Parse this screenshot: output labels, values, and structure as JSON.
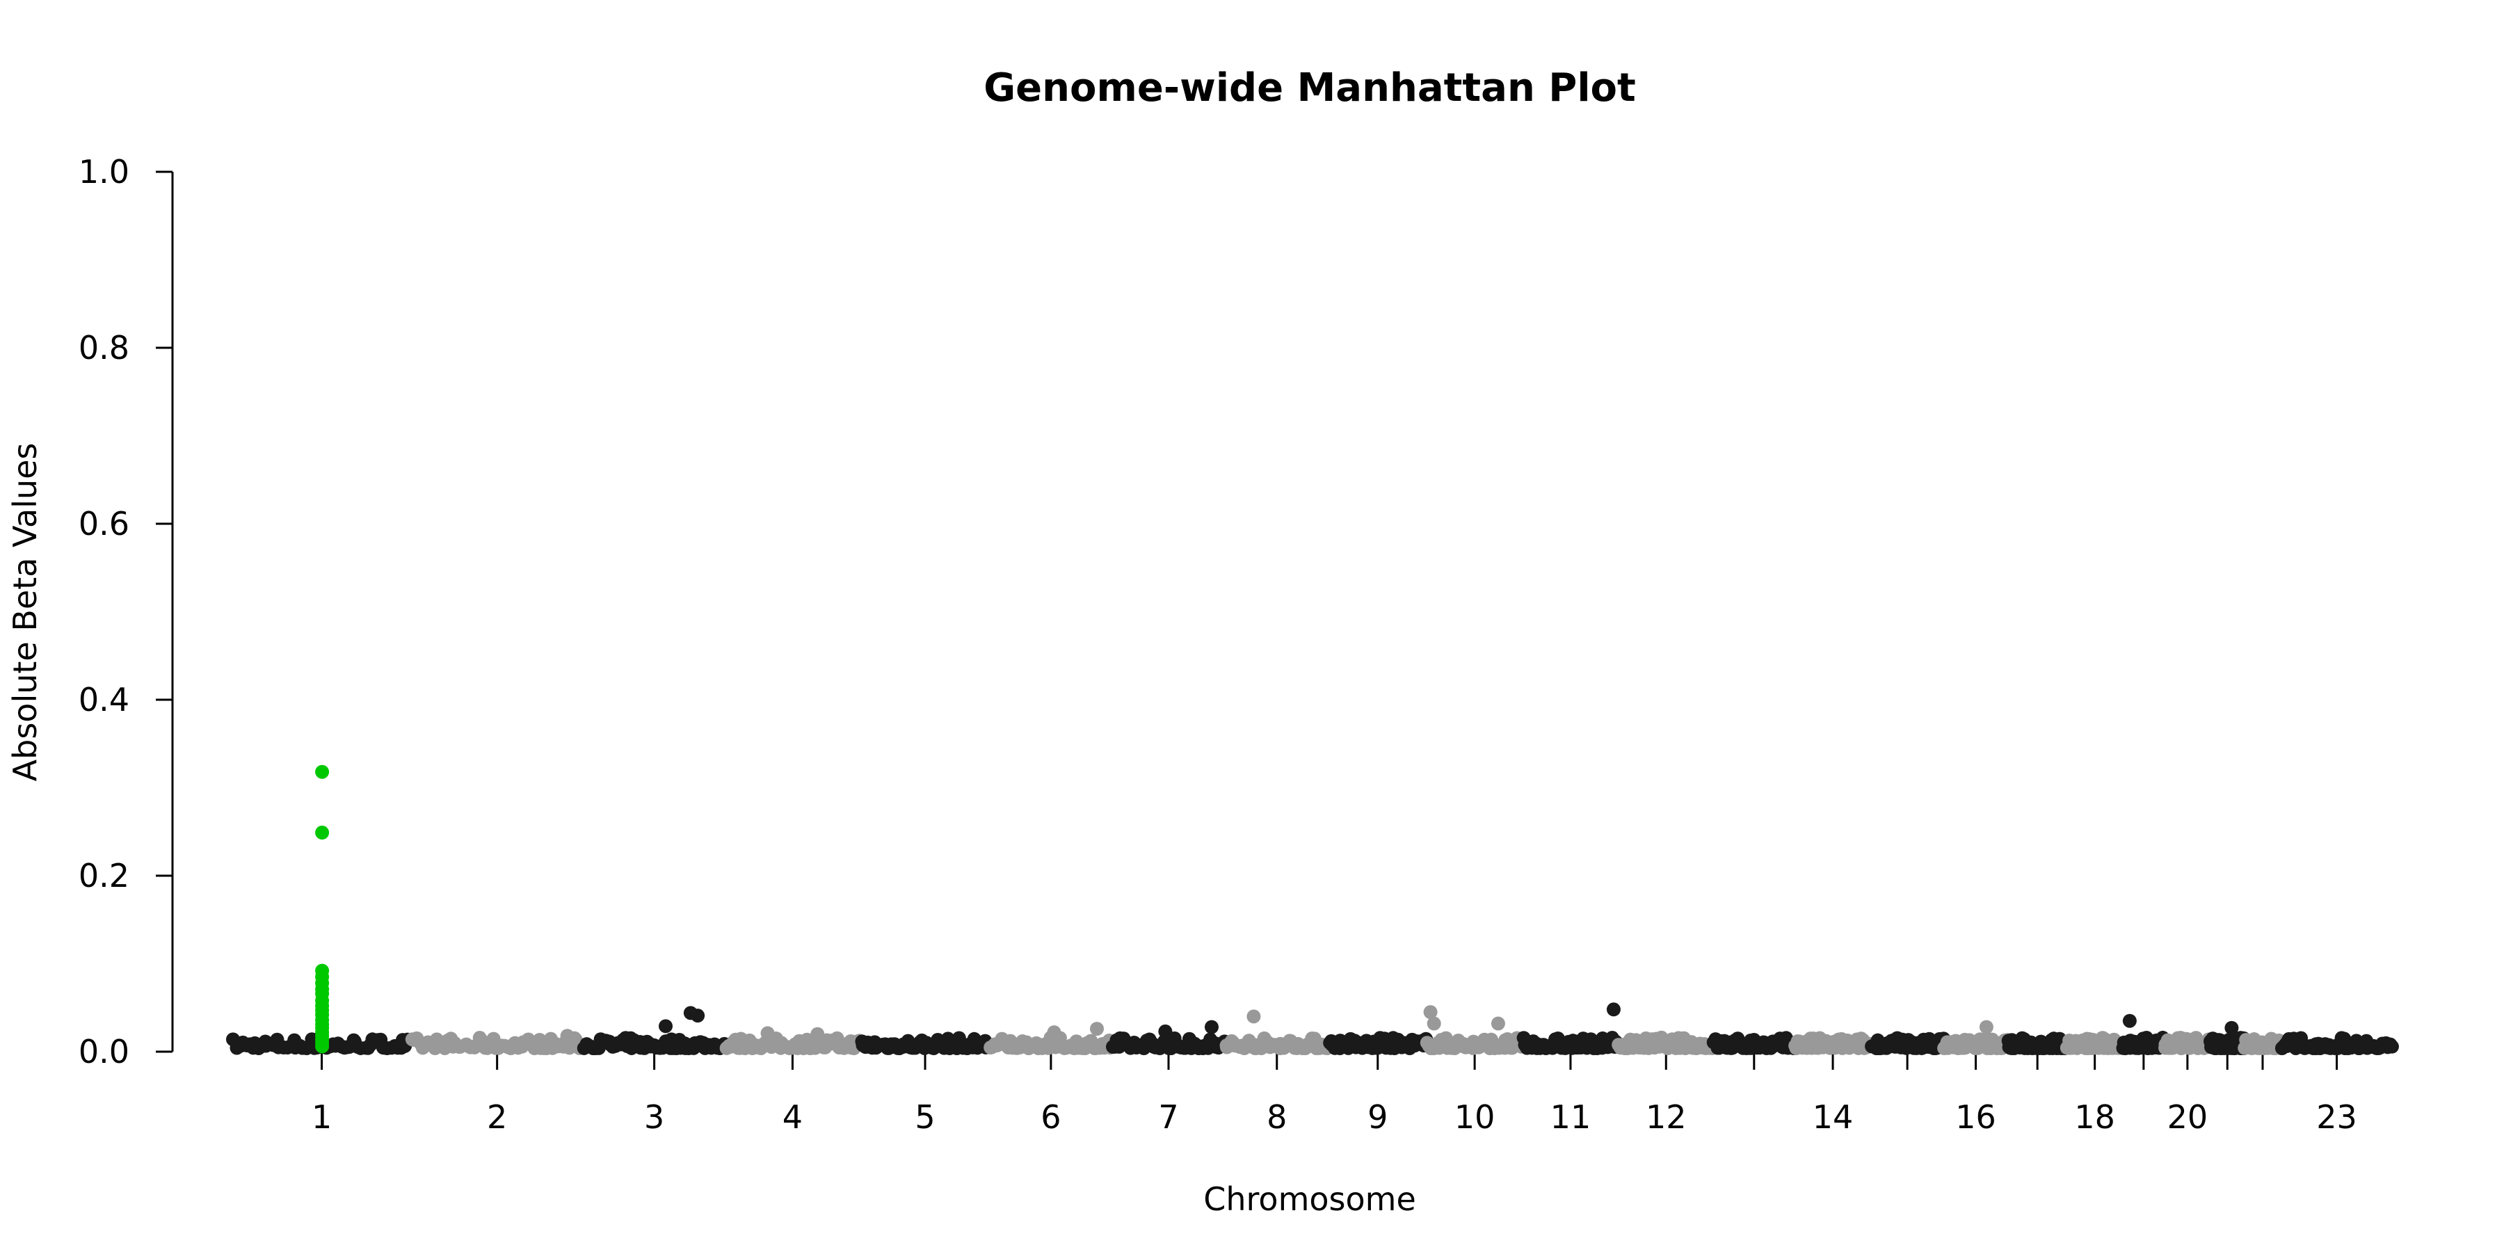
{
  "chart_data": {
    "type": "scatter",
    "title": "Genome-wide Manhattan Plot",
    "xlabel": "Chromosome",
    "ylabel": "Absolute Beta Values",
    "ylim": [
      0,
      1
    ],
    "yticks": [
      "0.0",
      "0.2",
      "0.4",
      "0.6",
      "0.8",
      "1.0"
    ],
    "xlim": [
      0,
      2880
    ],
    "grid": false,
    "legend": "none",
    "colors": {
      "odd": "#1a1a1a",
      "even": "#999999",
      "highlight": "#00c800"
    },
    "chromosomes": [
      {
        "chr": "1",
        "start": 0,
        "end": 249,
        "label": "1"
      },
      {
        "chr": "2",
        "start": 249,
        "end": 492,
        "label": "2"
      },
      {
        "chr": "3",
        "start": 492,
        "end": 690,
        "label": "3"
      },
      {
        "chr": "4",
        "start": 690,
        "end": 880,
        "label": "4"
      },
      {
        "chr": "5",
        "start": 880,
        "end": 1062,
        "label": "5"
      },
      {
        "chr": "6",
        "start": 1062,
        "end": 1233,
        "label": "6"
      },
      {
        "chr": "7",
        "start": 1233,
        "end": 1392,
        "label": "7"
      },
      {
        "chr": "8",
        "start": 1392,
        "end": 1537,
        "label": "8"
      },
      {
        "chr": "9",
        "start": 1537,
        "end": 1675,
        "label": "9"
      },
      {
        "chr": "10",
        "start": 1675,
        "end": 1809,
        "label": "10"
      },
      {
        "chr": "11",
        "start": 1809,
        "end": 1944,
        "label": "11"
      },
      {
        "chr": "12",
        "start": 1944,
        "end": 2077,
        "label": "12"
      },
      {
        "chr": "13",
        "start": 2077,
        "end": 2191,
        "label": ""
      },
      {
        "chr": "14",
        "start": 2191,
        "end": 2298,
        "label": "14"
      },
      {
        "chr": "15",
        "start": 2298,
        "end": 2400,
        "label": ""
      },
      {
        "chr": "16",
        "start": 2400,
        "end": 2490,
        "label": "16"
      },
      {
        "chr": "17",
        "start": 2490,
        "end": 2573,
        "label": ""
      },
      {
        "chr": "18",
        "start": 2573,
        "end": 2651,
        "label": "18"
      },
      {
        "chr": "19",
        "start": 2651,
        "end": 2710,
        "label": ""
      },
      {
        "chr": "20",
        "start": 2710,
        "end": 2774,
        "label": "20"
      },
      {
        "chr": "21",
        "start": 2774,
        "end": 2822,
        "label": ""
      },
      {
        "chr": "22",
        "start": 2822,
        "end": 2873,
        "label": ""
      },
      {
        "chr": "23",
        "start": 2873,
        "end": 3030,
        "label": "23"
      }
    ],
    "highlight": {
      "chr": "1",
      "position": 125,
      "values": [
        0.318,
        0.249,
        0.092,
        0.085,
        0.078,
        0.071,
        0.066,
        0.058,
        0.052,
        0.047,
        0.042,
        0.036,
        0.031,
        0.027,
        0.022,
        0.018,
        0.014,
        0.01,
        0.006
      ]
    },
    "peaks": [
      {
        "chr": "3",
        "position": 150,
        "value": 0.044
      },
      {
        "chr": "3",
        "position": 160,
        "value": 0.041
      },
      {
        "chr": "3",
        "position": 115,
        "value": 0.029
      },
      {
        "chr": "2",
        "position": 220,
        "value": 0.018
      },
      {
        "chr": "4",
        "position": 60,
        "value": 0.021
      },
      {
        "chr": "4",
        "position": 130,
        "value": 0.02
      },
      {
        "chr": "6",
        "position": 90,
        "value": 0.022
      },
      {
        "chr": "6",
        "position": 150,
        "value": 0.026
      },
      {
        "chr": "7",
        "position": 75,
        "value": 0.023
      },
      {
        "chr": "7",
        "position": 140,
        "value": 0.028
      },
      {
        "chr": "8",
        "position": 40,
        "value": 0.04
      },
      {
        "chr": "10",
        "position": 5,
        "value": 0.045
      },
      {
        "chr": "10",
        "position": 10,
        "value": 0.032
      },
      {
        "chr": "10",
        "position": 100,
        "value": 0.032
      },
      {
        "chr": "11",
        "position": 128,
        "value": 0.048
      },
      {
        "chr": "12",
        "position": 60,
        "value": 0.016
      },
      {
        "chr": "16",
        "position": 60,
        "value": 0.028
      },
      {
        "chr": "19",
        "position": 10,
        "value": 0.035
      },
      {
        "chr": "21",
        "position": 30,
        "value": 0.027
      },
      {
        "chr": "23",
        "position": 10,
        "value": 0.012
      }
    ],
    "background": {
      "points_per_chromosome": 60,
      "baseline_max": 0.012,
      "seed": 7
    }
  }
}
